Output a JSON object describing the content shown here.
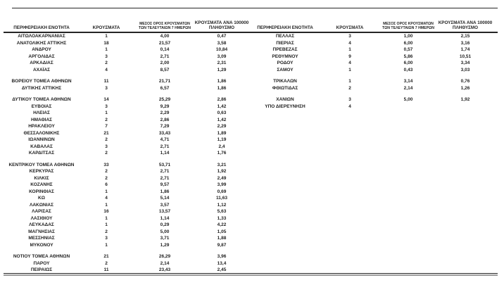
{
  "page": {
    "background": "#ffffff",
    "text_color": "#1f1f1f",
    "rule_color": "#262626",
    "bottom_rule_color": "#9b9b9b"
  },
  "headers": {
    "region": "ΠΕΡΙΦΕΡΕΙΑΚΗ ΕΝΟΤΗΤΑ",
    "cases": "ΚΡΟΥΣΜΑΤΑ",
    "avg7_line1": "ΜΕΣΟΣ ΟΡΟΣ ΚΡΟΥΣΜΑΤΩΝ",
    "avg7_line2": "ΤΩΝ ΤΕΛΕΥΤΑΙΩΝ 7 ΗΜΕΡΩΝ",
    "per100k_line1": "ΚΡΟΥΣΜΑΤΑ ΑΝΑ 100000",
    "per100k_line2": "ΠΛΗΘΥΣΜΟ"
  },
  "left_rows": [
    [
      "ΑΙΤΩΛΟΑΚΑΡΝΑΝΙΑΣ",
      "1",
      "4,00",
      "0,47"
    ],
    [
      "ΑΝΑΤΟΛΙΚΗΣ ΑΤΤΙΚΗΣ",
      "18",
      "21,57",
      "3,58"
    ],
    [
      "ΑΝΔΡΟΥ",
      "1",
      "0,14",
      "10,84"
    ],
    [
      "ΑΡΓΟΛΙΔΑΣ",
      "3",
      "2,71",
      "3,09"
    ],
    [
      "ΑΡΚΑΔΙΑΣ",
      "2",
      "2,00",
      "2,31"
    ],
    [
      "ΑΧΑΪΑΣ",
      "4",
      "8,57",
      "1,29"
    ],
    null,
    [
      "ΒΟΡΕΙΟΥ ΤΟΜΕΑ ΑΘΗΝΩΝ",
      "11",
      "21,71",
      "1,86"
    ],
    [
      "ΔΥΤΙΚΗΣ ΑΤΤΙΚΗΣ",
      "3",
      "6,57",
      "1,86"
    ],
    null,
    [
      "ΔΥΤΙΚΟΥ ΤΟΜΕΑ ΑΘΗΝΩΝ",
      "14",
      "25,29",
      "2,86"
    ],
    [
      "ΕΥΒΟΙΑΣ",
      "3",
      "9,29",
      "1,42"
    ],
    [
      "ΗΛΕΙΑΣ",
      "1",
      "2,29",
      "0,63"
    ],
    [
      "ΗΜΑΘΙΑΣ",
      "2",
      "2,86",
      "1,42"
    ],
    [
      "ΗΡΑΚΛΕΙΟΥ",
      "7",
      "7,29",
      "2,29"
    ],
    [
      "ΘΕΣΣΑΛΟΝΙΚΗΣ",
      "21",
      "33,43",
      "1,89"
    ],
    [
      "ΙΩΑΝΝΙΝΩΝ",
      "2",
      "4,71",
      "1,19"
    ],
    [
      "ΚΑΒΑΛΑΣ",
      "3",
      "2,71",
      "2,4"
    ],
    [
      "ΚΑΡΔΙΤΣΑΣ",
      "2",
      "1,14",
      "1,76"
    ],
    null,
    [
      "ΚΕΝΤΡΙΚΟΥ ΤΟΜΕΑ ΑΘΗΝΩΝ",
      "33",
      "53,71",
      "3,21"
    ],
    [
      "ΚΕΡΚΥΡΑΣ",
      "2",
      "2,71",
      "1,92"
    ],
    [
      "ΚΙΛΚΙΣ",
      "2",
      "2,71",
      "2,49"
    ],
    [
      "ΚΟΖΑΝΗΣ",
      "6",
      "9,57",
      "3,99"
    ],
    [
      "ΚΟΡΙΝΘΙΑΣ",
      "1",
      "1,86",
      "0,69"
    ],
    [
      "ΚΩ",
      "4",
      "5,14",
      "11,63"
    ],
    [
      "ΛΑΚΩΝΙΑΣ",
      "1",
      "3,57",
      "1,12"
    ],
    [
      "ΛΑΡΙΣΑΣ",
      "16",
      "13,57",
      "5,63"
    ],
    [
      "ΛΑΣΙΘΙΟΥ",
      "1",
      "1,14",
      "1,33"
    ],
    [
      "ΛΕΥΚΑΔΑΣ",
      "1",
      "0,29",
      "4,22"
    ],
    [
      "ΜΑΓΝΗΣΙΑΣ",
      "2",
      "5,00",
      "1,05"
    ],
    [
      "ΜΕΣΣΗΝΙΑΣ",
      "3",
      "3,71",
      "1,88"
    ],
    [
      "ΜΥΚΟΝΟΥ",
      "1",
      "1,29",
      "9,87"
    ],
    null,
    [
      "ΝΟΤΙΟΥ ΤΟΜΕΑ ΑΘΗΝΩΝ",
      "21",
      "26,29",
      "3,96"
    ],
    [
      "ΠΑΡΟΥ",
      "2",
      "2,14",
      "13,4"
    ],
    [
      "ΠΕΙΡΑΙΩΣ",
      "11",
      "23,43",
      "2,45"
    ]
  ],
  "right_rows": [
    [
      "ΠΕΛΛΑΣ",
      "3",
      "1,00",
      "2,15"
    ],
    [
      "ΠΙΕΡΙΑΣ",
      "4",
      "6,00",
      "3,16"
    ],
    [
      "ΠΡΕΒΕΖΑΣ",
      "1",
      "0,57",
      "1,74"
    ],
    [
      "ΡΕΘΥΜΝΟΥ",
      "9",
      "5,86",
      "10,51"
    ],
    [
      "ΡΟΔΟΥ",
      "4",
      "6,00",
      "3,34"
    ],
    [
      "ΣΑΜΟΥ",
      "1",
      "0,43",
      "3,03"
    ],
    null,
    [
      "ΤΡΙΚΑΛΩΝ",
      "1",
      "3,14",
      "0,76"
    ],
    [
      "ΦΘΙΩΤΙΔΑΣ",
      "2",
      "2,14",
      "1,26"
    ],
    null,
    [
      "ΧΑΝΙΩΝ",
      "3",
      "5,00",
      "1,92"
    ],
    [
      "ΥΠΟ ΔΙΕΡΕΥΝΗΣΗ",
      "4",
      "",
      ""
    ]
  ]
}
